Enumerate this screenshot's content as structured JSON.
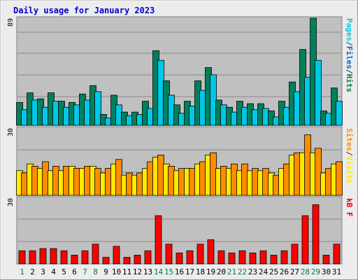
{
  "chart_data": {
    "type": "bar",
    "title": "Daily usage for January 2023",
    "days": [
      "1",
      "2",
      "3",
      "4",
      "5",
      "6",
      "7",
      "8",
      "9",
      "10",
      "11",
      "12",
      "13",
      "14",
      "15",
      "16",
      "17",
      "18",
      "19",
      "20",
      "21",
      "22",
      "23",
      "24",
      "25",
      "26",
      "27",
      "28",
      "29",
      "30",
      "31"
    ],
    "weekend_days": [
      "1",
      "7",
      "8",
      "14",
      "15",
      "21",
      "22",
      "28",
      "29"
    ],
    "panels": [
      {
        "id": "hits",
        "ymax": 89,
        "ymax_label": "89",
        "axis_label_parts": [
          "Pages",
          "/",
          "Files",
          "/",
          "Hits"
        ],
        "axis_label_colors": [
          "#00c8e8",
          "#333333",
          "#0066cc",
          "#333333",
          "#008040"
        ],
        "series": [
          {
            "name": "Hits",
            "color": "#00805c",
            "values": [
              19,
              27,
              22,
              27,
              20,
              19,
              26,
              33,
              9,
              25,
              11,
              11,
              20,
              62,
              37,
              17,
              20,
              37,
              48,
              21,
              15,
              20,
              18,
              18,
              12,
              20,
              36,
              63,
              89,
              12,
              31
            ]
          },
          {
            "name": "Files",
            "color": "#00c8e8",
            "values": [
              13,
              21,
              15,
              20,
              15,
              17,
              21,
              28,
              6,
              17,
              8,
              9,
              14,
              54,
              25,
              10,
              16,
              29,
              42,
              17,
              11,
              15,
              13,
              14,
              7,
              15,
              28,
              40,
              54,
              10,
              20
            ]
          }
        ]
      },
      {
        "id": "visits",
        "ymax": 30,
        "ymax_label": "30",
        "axis_label_parts": [
          "Sites",
          "/",
          "Visits"
        ],
        "axis_label_colors": [
          "#ff8c00",
          "#333333",
          "#ffea00"
        ],
        "series": [
          {
            "name": "Visits",
            "color": "#ffea00",
            "values": [
              11,
              14,
              12,
              11,
              11,
              13,
              12,
              13,
              10,
              14,
              9,
              9,
              12,
              17,
              14,
              11,
              12,
              14,
              18,
              12,
              12,
              11,
              11,
              11,
              10,
              12,
              18,
              19,
              19,
              10,
              14
            ]
          },
          {
            "name": "Sites",
            "color": "#ff8c00",
            "values": [
              10,
              13,
              15,
              13,
              13,
              12,
              13,
              12,
              12,
              16,
              10,
              10,
              15,
              18,
              13,
              12,
              12,
              15,
              19,
              13,
              14,
              14,
              12,
              12,
              9,
              14,
              19,
              27,
              21,
              12,
              15
            ]
          }
        ]
      },
      {
        "id": "kb",
        "ymax": 30,
        "ymax_label": "30",
        "axis_label_parts": [
          "kB",
          " ",
          "F"
        ],
        "axis_label_colors": [
          "#e00000",
          "#333333",
          "#e00000"
        ],
        "series": [
          {
            "name": "kB F",
            "color": "#ff0000",
            "values": [
              6,
              6,
              7,
              7,
              6,
              4,
              6,
              9,
              3,
              8,
              3,
              4,
              6,
              22,
              9,
              5,
              6,
              9,
              11,
              6,
              5,
              6,
              5,
              6,
              4,
              6,
              9,
              22,
              27,
              4,
              9
            ]
          }
        ]
      }
    ]
  }
}
